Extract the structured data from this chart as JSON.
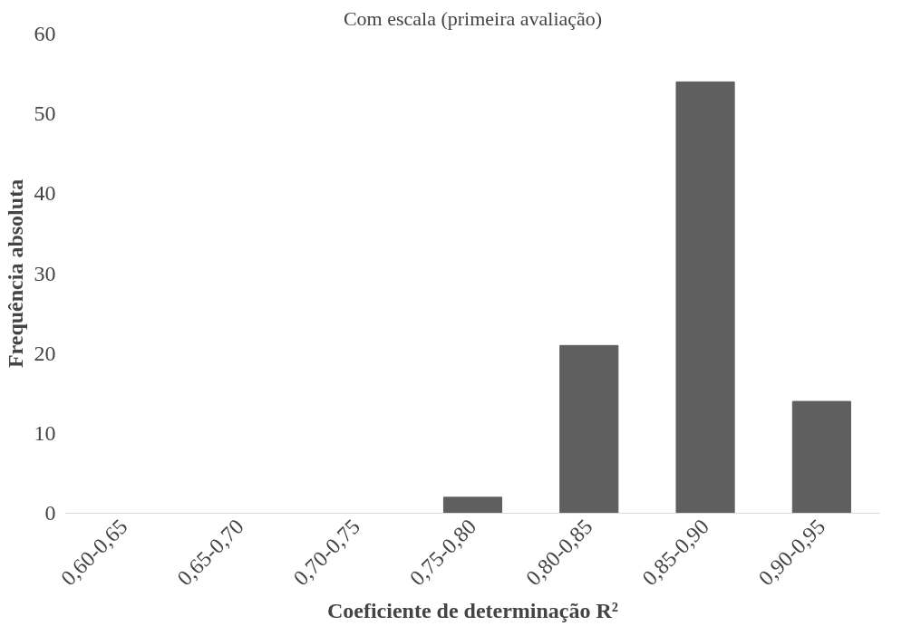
{
  "chart_data": {
    "type": "bar",
    "title": "Com escala (primeira avaliação)",
    "xlabel": "Coeficiente de determinação R²",
    "ylabel": "Frequência absoluta",
    "categories": [
      "0,60-0,65",
      "0,65-0,70",
      "0,70-0,75",
      "0,75-0,80",
      "0,80-0,85",
      "0,85-0,90",
      "0,90-0,95"
    ],
    "values": [
      0,
      0,
      0,
      2,
      21,
      54,
      14
    ],
    "color": "#5f5f5f",
    "ylim": [
      0,
      60
    ],
    "yticks": [
      0,
      10,
      20,
      30,
      40,
      50,
      60
    ],
    "grid": false
  }
}
